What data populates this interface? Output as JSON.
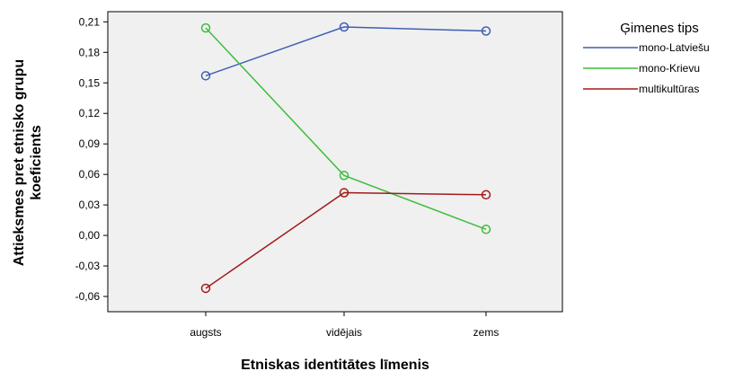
{
  "chart_data": {
    "type": "line",
    "title": "",
    "xlabel": "Etniskas identitātes līmenis",
    "ylabel": [
      "Attieksmes pret etnisko grupu",
      "koeficients"
    ],
    "categories": [
      "augsts",
      "vidējais",
      "zems"
    ],
    "ylim": [
      -0.075,
      0.22
    ],
    "yticks": [
      "0,21",
      "0,18",
      "0,15",
      "0,12",
      "0,09",
      "0,06",
      "0,03",
      "0,00",
      "-0,03",
      "-0,06"
    ],
    "ytick_values": [
      0.21,
      0.18,
      0.15,
      0.12,
      0.09,
      0.06,
      0.03,
      0.0,
      -0.03,
      -0.06
    ],
    "grid": false,
    "legend": {
      "title": "Ģimenes tips",
      "placement": "top-right"
    },
    "series": [
      {
        "name": "mono-Latviešu",
        "values": [
          0.157,
          0.205,
          0.201
        ],
        "color": "#3f5fb4"
      },
      {
        "name": "mono-Krievu",
        "values": [
          0.204,
          0.059,
          0.006
        ],
        "color": "#3ebd3e"
      },
      {
        "name": "multikultūras",
        "values": [
          -0.052,
          0.042,
          0.04
        ],
        "color": "#a31a1a"
      }
    ]
  }
}
